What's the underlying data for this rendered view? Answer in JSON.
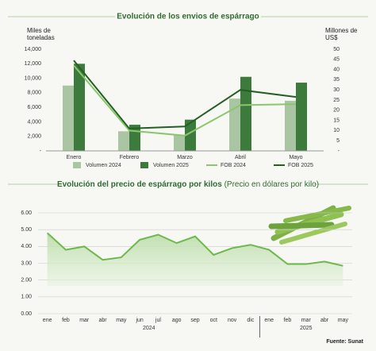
{
  "chart_data": [
    {
      "type": "bar",
      "title": "Evolución de los envios de espárrago",
      "y_label": "Miles de toneladas",
      "y2_label": "Millones de US$",
      "categories": [
        "Enero",
        "Febrero",
        "Marzo",
        "Abril",
        "Mayo"
      ],
      "series": [
        {
          "name": "Volumen 2024",
          "color": "#aac5a2",
          "values": [
            9000,
            2700,
            2200,
            7200,
            6900
          ]
        },
        {
          "name": "Volumen 2025",
          "color": "#3d7b3d",
          "values": [
            12000,
            3600,
            4300,
            10200,
            9400
          ]
        },
        {
          "name": "FOB 2024",
          "color": "#8cc66c",
          "type": "line",
          "axis": "y2",
          "values": [
            42,
            10,
            7.5,
            22.5,
            23
          ]
        },
        {
          "name": "FOB 2025",
          "color": "#245f24",
          "type": "line",
          "axis": "y2",
          "values": [
            44.5,
            11,
            12,
            30,
            26.5
          ]
        }
      ],
      "ylim": [
        0,
        14000
      ],
      "yticks": [
        {
          "value": 0,
          "label": "-"
        },
        {
          "value": 2000,
          "label": "2,000"
        },
        {
          "value": 4000,
          "label": "4,000"
        },
        {
          "value": 6000,
          "label": "6,000"
        },
        {
          "value": 8000,
          "label": "8,000"
        },
        {
          "value": 10000,
          "label": "10,000"
        },
        {
          "value": 12000,
          "label": "12,000"
        },
        {
          "value": 14000,
          "label": "14,000"
        }
      ],
      "y2lim": [
        0,
        50
      ],
      "y2ticks": [
        {
          "value": 0,
          "label": "-"
        },
        5,
        10,
        15,
        20,
        25,
        30,
        35,
        40,
        45,
        50
      ],
      "legend": "bottom"
    },
    {
      "type": "area",
      "title": "Evolución del precio de espárrago por kilos",
      "subtitle": "(Precio en dólares por kilo)",
      "categories": [
        "ene",
        "feb",
        "mar",
        "abr",
        "may",
        "jun",
        "jul",
        "ago",
        "sep",
        "oct",
        "nov",
        "dic",
        "ene",
        "feb",
        "mar",
        "abr",
        "may"
      ],
      "groups": [
        "2024",
        "2025"
      ],
      "values": [
        4.8,
        3.8,
        4.0,
        3.2,
        3.35,
        4.4,
        4.7,
        4.2,
        4.6,
        3.5,
        3.9,
        4.1,
        3.8,
        2.95,
        2.95,
        3.1,
        2.85
      ],
      "color": "#6cb84c",
      "ylim": [
        0,
        6
      ],
      "yticks": [
        {
          "value": 0,
          "label": "0.00"
        },
        {
          "value": 1,
          "label": "1.00"
        },
        {
          "value": 2,
          "label": "2.00"
        },
        {
          "value": 3,
          "label": "3.00"
        },
        {
          "value": 4,
          "label": "4.00"
        },
        {
          "value": 5,
          "label": "5.00"
        },
        {
          "value": 6,
          "label": "6.00"
        }
      ],
      "grid": true
    }
  ],
  "source": "Fuente: Sunat"
}
